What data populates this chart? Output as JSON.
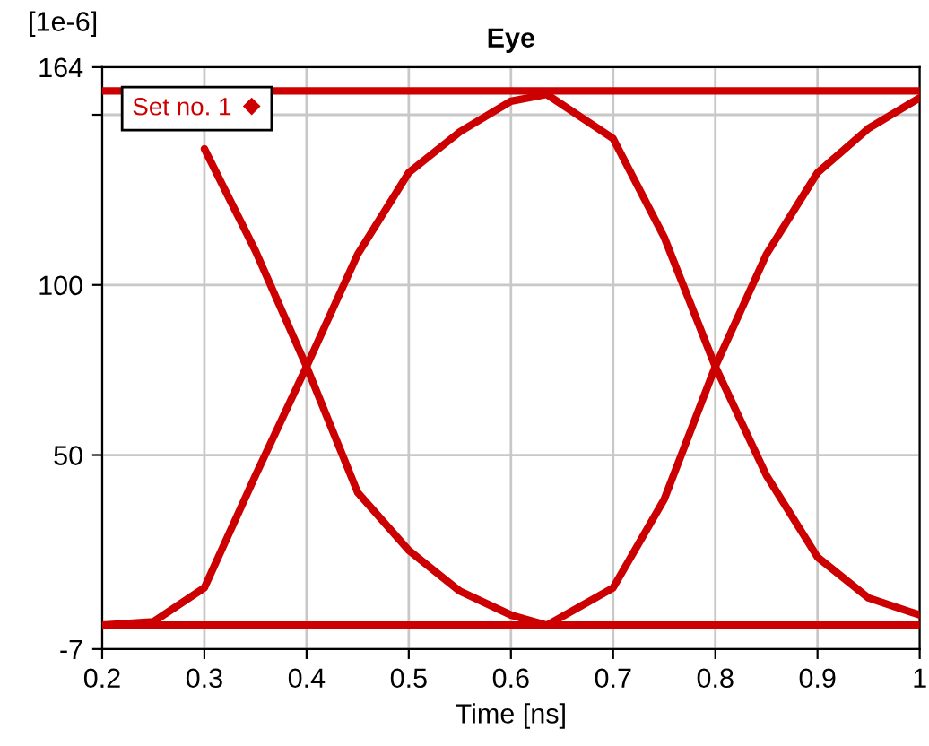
{
  "chart_data": {
    "type": "line",
    "title": "Eye",
    "xlabel": "Time [ns]",
    "annotations": [
      "[1e-6]"
    ],
    "xlim": [
      0.2,
      1
    ],
    "xticks": [
      0.2,
      0.3,
      0.4,
      0.5,
      0.6,
      0.7,
      0.8,
      0.9,
      {
        "value": 1,
        "label": "1"
      }
    ],
    "ylim": [
      -7,
      164
    ],
    "yticks": [
      -7,
      50,
      100,
      {
        "value": 150,
        "label": null
      },
      164
    ],
    "grid": true,
    "legend": "top left",
    "series": [
      {
        "name": "Set no. 1",
        "color": "#cc0000",
        "x": [
          0.2,
          0.25,
          0.3,
          0.35,
          0.4,
          0.45,
          0.5,
          0.55,
          0.6,
          0.635,
          0.7,
          0.75,
          0.8,
          0.85,
          0.9,
          0.95,
          1.0
        ],
        "values": [
          0,
          1,
          11,
          44,
          76,
          109,
          133,
          145,
          154,
          156,
          143,
          114,
          76,
          44,
          20,
          8,
          3
        ]
      },
      {
        "color": "#cc0000",
        "x": [
          0.3,
          0.35,
          0.4,
          0.45,
          0.5,
          0.55,
          0.6,
          0.635,
          0.7,
          0.75,
          0.8,
          0.85,
          0.9,
          0.95,
          1.0
        ],
        "values": [
          140,
          110,
          76,
          39,
          22,
          10,
          3,
          0,
          11,
          37,
          76,
          109,
          133,
          146,
          155
        ]
      },
      {
        "color": "#cc0000",
        "x": [
          0.2,
          1.0
        ],
        "values": [
          157,
          157
        ]
      },
      {
        "color": "#cc0000",
        "x": [
          0.2,
          1.0
        ],
        "values": [
          0,
          0
        ]
      }
    ]
  }
}
